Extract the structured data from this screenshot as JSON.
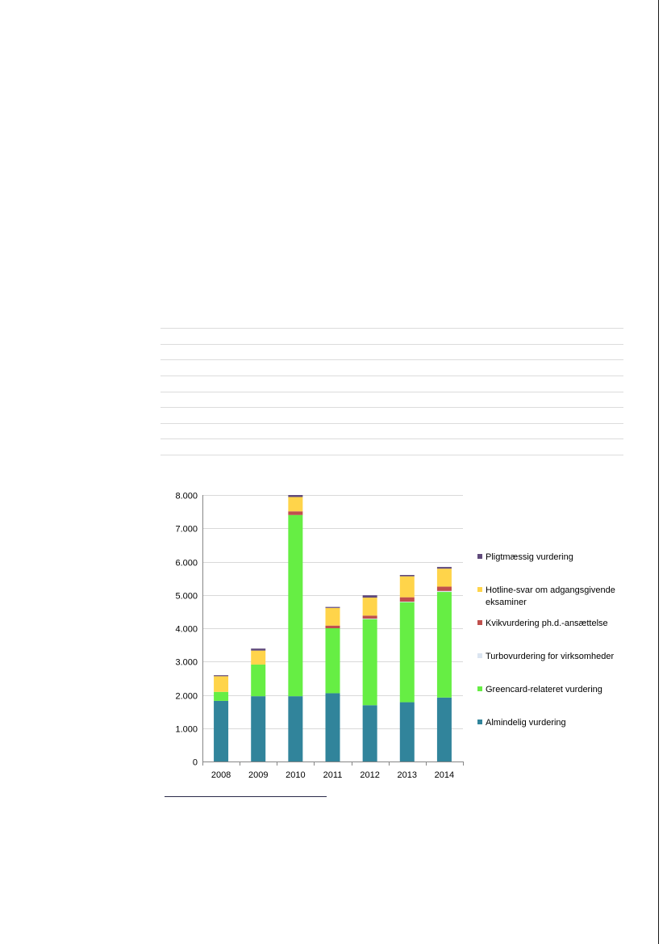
{
  "colors": {
    "page_edge": "#1a1a1a",
    "table_rule": "#dcdcdc",
    "gridline": "#d9d9d9",
    "axis": "#868686",
    "footnote_rule": "#2b2b4a"
  },
  "chart_data": {
    "type": "bar",
    "stacked": true,
    "categories": [
      "2008",
      "2009",
      "2010",
      "2011",
      "2012",
      "2013",
      "2014"
    ],
    "ylim": [
      0,
      8000
    ],
    "yticks": [
      0,
      1000,
      2000,
      3000,
      4000,
      5000,
      6000,
      7000,
      8000
    ],
    "ytick_labels": [
      "0",
      "1.000",
      "2.000",
      "3.000",
      "4.000",
      "5.000",
      "6.000",
      "7.000",
      "8.000"
    ],
    "grid": true,
    "legend_position": "right",
    "series": [
      {
        "name": "Almindelig vurdering",
        "color": "#31849b",
        "values": [
          1820,
          1960,
          1960,
          2050,
          1690,
          1780,
          1920
        ]
      },
      {
        "name": "Greencard-relateret vurdering",
        "color": "#66ee44",
        "values": [
          270,
          950,
          5440,
          1950,
          2590,
          3010,
          3170
        ]
      },
      {
        "name": "Turbovurdering for virksomheder",
        "color": "#dbe5f1",
        "values": [
          0,
          0,
          0,
          0,
          10,
          10,
          30
        ]
      },
      {
        "name": "Kvikvurdering ph.d.-ansættelse",
        "color": "#c0504d",
        "values": [
          0,
          0,
          110,
          80,
          90,
          130,
          130
        ]
      },
      {
        "name": "Hotline-svar om adgangsgivende eksaminer",
        "color": "#ffd44a",
        "values": [
          470,
          420,
          430,
          530,
          540,
          630,
          540
        ]
      },
      {
        "name": "Pligtmæssig vurdering",
        "color": "#604a7b",
        "values": [
          30,
          60,
          60,
          30,
          70,
          40,
          50
        ]
      }
    ]
  }
}
